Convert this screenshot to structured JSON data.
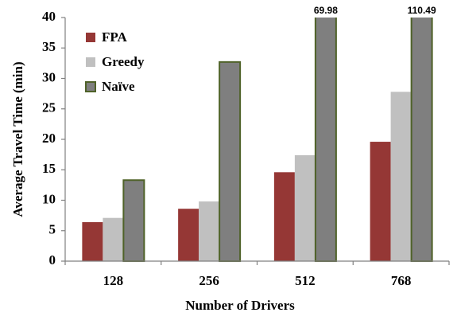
{
  "chart_data": {
    "type": "bar",
    "y_label": "Average Travel Time (min)",
    "x_label": "Number of Drivers",
    "categories": [
      "128",
      "256",
      "512",
      "768"
    ],
    "series": [
      {
        "name": "FPA",
        "color": "#953735",
        "values": [
          6.4,
          8.6,
          14.6,
          19.6
        ]
      },
      {
        "name": "Greedy",
        "color": "#c0c0c0",
        "values": [
          7.1,
          9.8,
          17.4,
          27.8
        ]
      },
      {
        "name": "Naïve",
        "color": "#7f7f7f",
        "values": [
          13.3,
          32.7,
          69.98,
          110.49
        ],
        "value_labels": [
          null,
          null,
          "69.98",
          "110.49"
        ]
      }
    ],
    "ylim": [
      0,
      40
    ],
    "yticks": [
      0,
      5,
      10,
      15,
      20,
      25,
      30,
      35,
      40
    ],
    "legend": "upper left"
  }
}
